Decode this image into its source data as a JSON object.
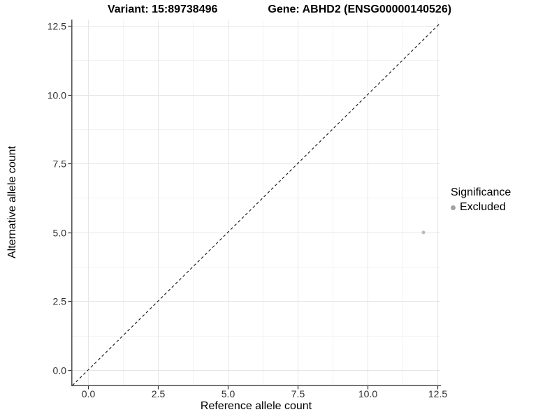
{
  "chart_data": {
    "type": "scatter",
    "title_left": "Variant: 15:89738496",
    "title_right": "Gene: ABHD2 (ENSG00000140526)",
    "xlabel": "Reference allele count",
    "ylabel": "Alternative allele count",
    "xlim": [
      -0.575,
      12.6
    ],
    "ylim": [
      -0.56,
      12.73
    ],
    "x_ticks": [
      0,
      2.5,
      5,
      7.5,
      10,
      12.5
    ],
    "x_tick_labels": [
      "0.0",
      "2.5",
      "5.0",
      "7.5",
      "10.0",
      "12.5"
    ],
    "y_ticks": [
      0,
      2.5,
      5,
      7.5,
      10,
      12.5
    ],
    "y_tick_labels": [
      "0.0",
      "2.5",
      "5.0",
      "7.5",
      "10.0",
      "12.5"
    ],
    "x_minor_gridlines": [
      1.25,
      3.75,
      6.25,
      8.75,
      11.25
    ],
    "y_minor_gridlines": [
      1.25,
      3.75,
      6.25,
      8.75,
      11.25
    ],
    "grid": "major+minor",
    "reference_line": {
      "type": "identity",
      "slope": 1,
      "intercept": 0,
      "style": "dashed"
    },
    "series": [
      {
        "name": "Excluded",
        "points": [
          {
            "x": 12,
            "y": 5
          }
        ]
      }
    ],
    "legend": {
      "title": "Significance",
      "position": "right",
      "items": [
        {
          "label": "Excluded",
          "color": "#a3a3a3"
        }
      ]
    },
    "colors": {
      "point": "#bebebe",
      "grid_major": "#e6e6e6",
      "grid_minor": "#f3f3f3",
      "axis_line": "#4d4d4d",
      "tick_mark": "#333333",
      "tick_label": "#303030",
      "reference_line": "#111111",
      "background": "#ffffff"
    }
  }
}
